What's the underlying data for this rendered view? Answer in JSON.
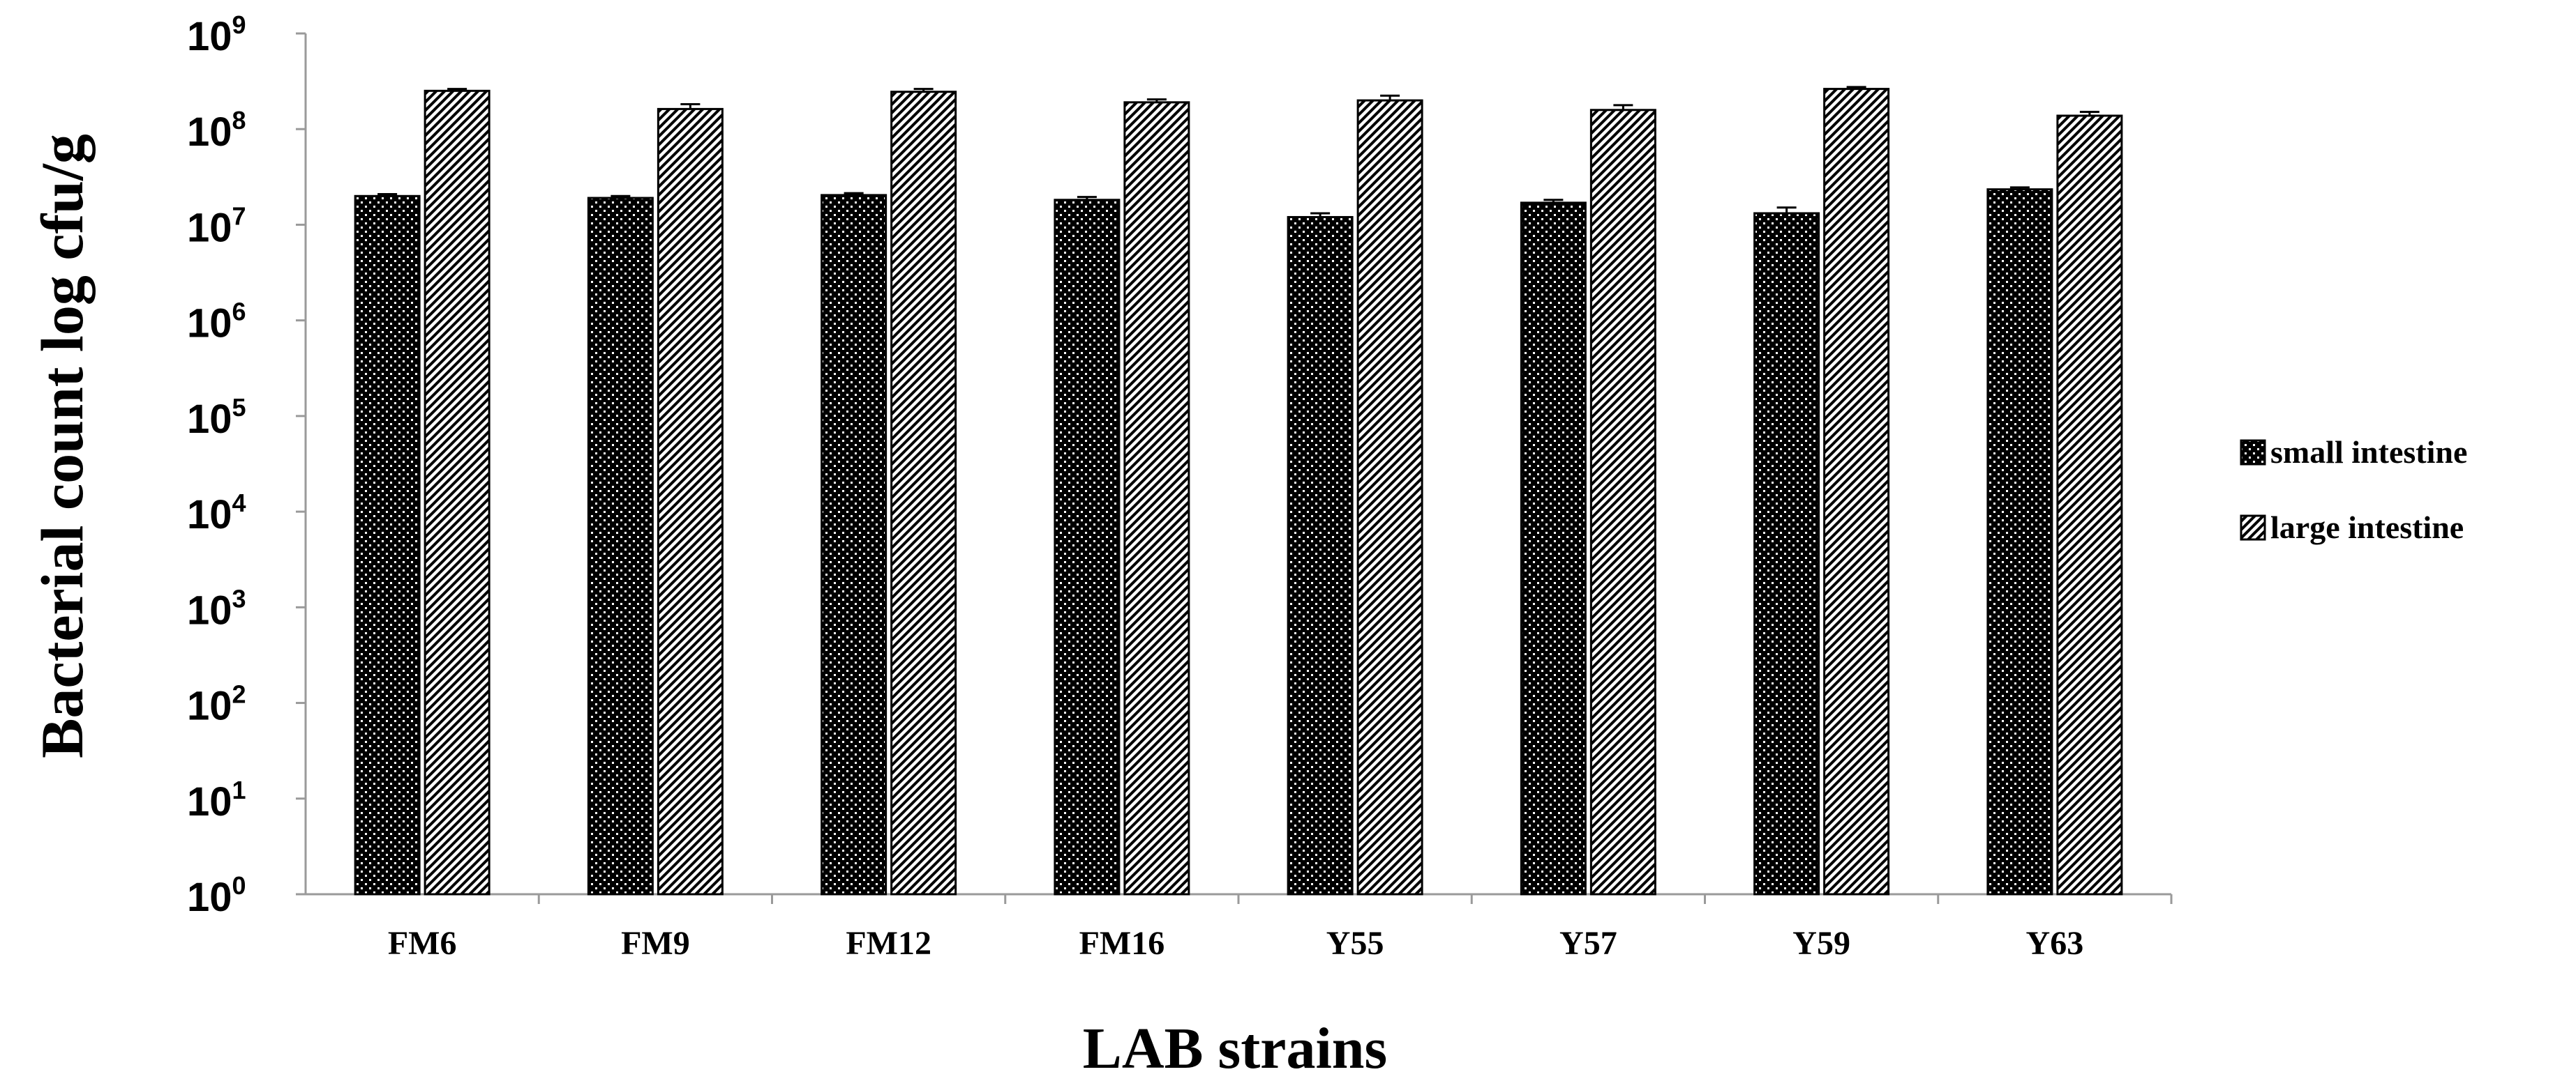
{
  "chart_data": {
    "type": "bar",
    "title": "",
    "xlabel": "LAB strains",
    "ylabel": "Bacterial count log cfu/g",
    "yscale": "log10",
    "ylim": [
      0,
      9
    ],
    "ytick_labels": [
      {
        "base": "10",
        "exp": "0"
      },
      {
        "base": "10",
        "exp": "1"
      },
      {
        "base": "10",
        "exp": "2"
      },
      {
        "base": "10",
        "exp": "3"
      },
      {
        "base": "10",
        "exp": "4"
      },
      {
        "base": "10",
        "exp": "5"
      },
      {
        "base": "10",
        "exp": "6"
      },
      {
        "base": "10",
        "exp": "7"
      },
      {
        "base": "10",
        "exp": "8"
      },
      {
        "base": "10",
        "exp": "9"
      }
    ],
    "categories": [
      "FM6",
      "FM9",
      "FM12",
      "FM16",
      "Y55",
      "Y57",
      "Y59",
      "Y63"
    ],
    "series": [
      {
        "name": "small intestine",
        "pattern": "dense-checker",
        "values_log10": [
          7.3,
          7.28,
          7.31,
          7.26,
          7.08,
          7.23,
          7.12,
          7.37
        ],
        "error_log10": [
          0.02,
          0.02,
          0.02,
          0.03,
          0.04,
          0.03,
          0.06,
          0.02
        ]
      },
      {
        "name": "large intestine",
        "pattern": "diagonal-hatch",
        "values_log10": [
          8.4,
          8.21,
          8.39,
          8.28,
          8.3,
          8.2,
          8.42,
          8.14
        ],
        "error_log10": [
          0.02,
          0.05,
          0.03,
          0.03,
          0.05,
          0.05,
          0.02,
          0.04
        ]
      }
    ],
    "legend_position": "right"
  }
}
